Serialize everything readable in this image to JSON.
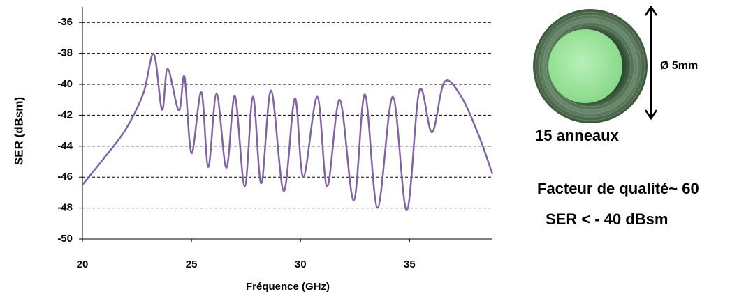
{
  "chart_data": {
    "type": "line",
    "x_label": "Fréquence (GHz)",
    "y_label": "SER (dBsm)",
    "x": [
      20,
      21.03,
      21.99,
      22.79,
      23.27,
      23.65,
      23.91,
      24.42,
      24.68,
      25.0,
      25.45,
      25.77,
      26.15,
      26.6,
      26.99,
      27.44,
      27.82,
      28.2,
      28.65,
      29.23,
      29.74,
      30.13,
      30.77,
      31.22,
      31.8,
      32.44,
      32.95,
      33.53,
      34.23,
      34.87,
      35.45,
      36.03,
      36.6,
      37.37,
      38.17,
      38.8
    ],
    "series": [
      {
        "color": "#8064a2",
        "values": [
          -46.5,
          -44.7,
          -42.9,
          -40.6,
          -38.03,
          -41.65,
          -39.0,
          -41.7,
          -39.5,
          -44.45,
          -40.5,
          -45.35,
          -40.6,
          -45.4,
          -40.75,
          -46.6,
          -40.8,
          -46.4,
          -40.4,
          -46.9,
          -40.9,
          -46.0,
          -40.8,
          -46.6,
          -41.0,
          -47.5,
          -40.65,
          -47.97,
          -40.8,
          -48.15,
          -40.4,
          -43.1,
          -39.85,
          -40.8,
          -43.3,
          -45.8
        ]
      }
    ],
    "xlim": [
      20,
      38.8
    ],
    "ylim": [
      -50,
      -35
    ],
    "xticks": [
      20,
      25,
      30,
      35
    ],
    "yticks": [
      -50,
      -48,
      -46,
      -44,
      -42,
      -40,
      -38,
      -36
    ],
    "grid": true,
    "annotations": [
      "Ø 5mm",
      "15 anneaux",
      "Facteur de qualité~ 60",
      "SER < - 40 dBsm"
    ]
  }
}
